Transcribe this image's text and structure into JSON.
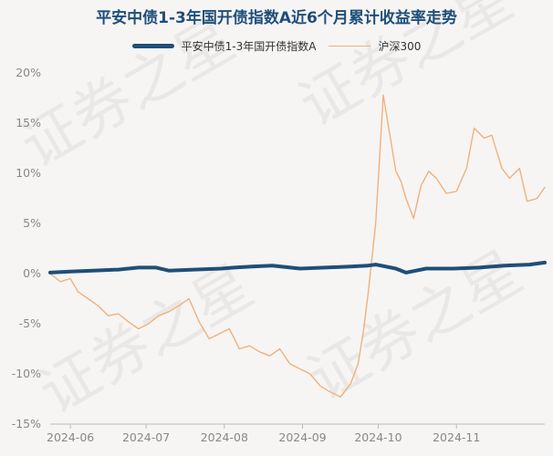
{
  "chart_data": {
    "type": "line",
    "title": "平安中债1-3年国开债指数A近6个月累计收益率走势",
    "y_unit": "%",
    "ylim": [
      -15,
      20
    ],
    "y_ticks": [
      20,
      15,
      10,
      5,
      0,
      -5,
      -10,
      -15
    ],
    "y_tick_labels": [
      "20%",
      "15%",
      "10%",
      "5%",
      "0%",
      "-5%",
      "-10%",
      "-15%"
    ],
    "x_ticks": [
      "2024-06",
      "2024-07",
      "2024-08",
      "2024-09",
      "2024-10",
      "2024-11"
    ],
    "xlim": [
      "2024-05-24",
      "2024-12-06"
    ],
    "grid": false,
    "legend_position": "top",
    "series": [
      {
        "name": "平安中债1-3年国开债指数A",
        "color": "#1f4e79",
        "x": [
          "2024-05-24",
          "2024-06-01",
          "2024-06-10",
          "2024-06-20",
          "2024-06-28",
          "2024-07-05",
          "2024-07-10",
          "2024-07-20",
          "2024-07-31",
          "2024-08-05",
          "2024-08-12",
          "2024-08-20",
          "2024-08-31",
          "2024-09-10",
          "2024-09-20",
          "2024-09-27",
          "2024-09-30",
          "2024-10-08",
          "2024-10-12",
          "2024-10-20",
          "2024-10-31",
          "2024-11-10",
          "2024-11-20",
          "2024-11-30",
          "2024-12-06"
        ],
        "values": [
          0.1,
          0.2,
          0.3,
          0.4,
          0.6,
          0.6,
          0.3,
          0.4,
          0.5,
          0.6,
          0.7,
          0.8,
          0.5,
          0.6,
          0.7,
          0.8,
          0.9,
          0.5,
          0.1,
          0.5,
          0.5,
          0.6,
          0.8,
          0.9,
          1.1
        ]
      },
      {
        "name": "沪深300",
        "color": "#f3b07a",
        "x": [
          "2024-05-24",
          "2024-05-28",
          "2024-06-01",
          "2024-06-04",
          "2024-06-08",
          "2024-06-12",
          "2024-06-16",
          "2024-06-20",
          "2024-06-24",
          "2024-06-28",
          "2024-07-02",
          "2024-07-06",
          "2024-07-10",
          "2024-07-14",
          "2024-07-18",
          "2024-07-22",
          "2024-07-26",
          "2024-07-30",
          "2024-08-03",
          "2024-08-07",
          "2024-08-11",
          "2024-08-15",
          "2024-08-19",
          "2024-08-23",
          "2024-08-27",
          "2024-08-31",
          "2024-09-04",
          "2024-09-08",
          "2024-09-12",
          "2024-09-16",
          "2024-09-20",
          "2024-09-23",
          "2024-09-25",
          "2024-09-27",
          "2024-09-30",
          "2024-10-03",
          "2024-10-08",
          "2024-10-10",
          "2024-10-12",
          "2024-10-15",
          "2024-10-18",
          "2024-10-21",
          "2024-10-24",
          "2024-10-28",
          "2024-11-01",
          "2024-11-05",
          "2024-11-08",
          "2024-11-12",
          "2024-11-15",
          "2024-11-19",
          "2024-11-22",
          "2024-11-26",
          "2024-11-29",
          "2024-12-03",
          "2024-12-06"
        ],
        "values": [
          0,
          -0.8,
          -0.5,
          -1.8,
          -2.5,
          -3.2,
          -4.2,
          -4.0,
          -4.8,
          -5.5,
          -5.0,
          -4.2,
          -3.8,
          -3.2,
          -2.5,
          -4.8,
          -6.5,
          -6.0,
          -5.5,
          -7.5,
          -7.2,
          -7.8,
          -8.2,
          -7.5,
          -9.0,
          -9.5,
          -10.0,
          -11.2,
          -11.8,
          -12.3,
          -11.0,
          -9.0,
          -6.0,
          -2.0,
          5.0,
          17.8,
          10.2,
          9.2,
          7.5,
          5.5,
          8.8,
          10.2,
          9.5,
          8.0,
          8.2,
          10.5,
          14.5,
          13.5,
          13.8,
          10.5,
          9.5,
          10.5,
          7.2,
          7.5,
          8.6
        ]
      }
    ]
  },
  "watermark_text": "证券之星"
}
